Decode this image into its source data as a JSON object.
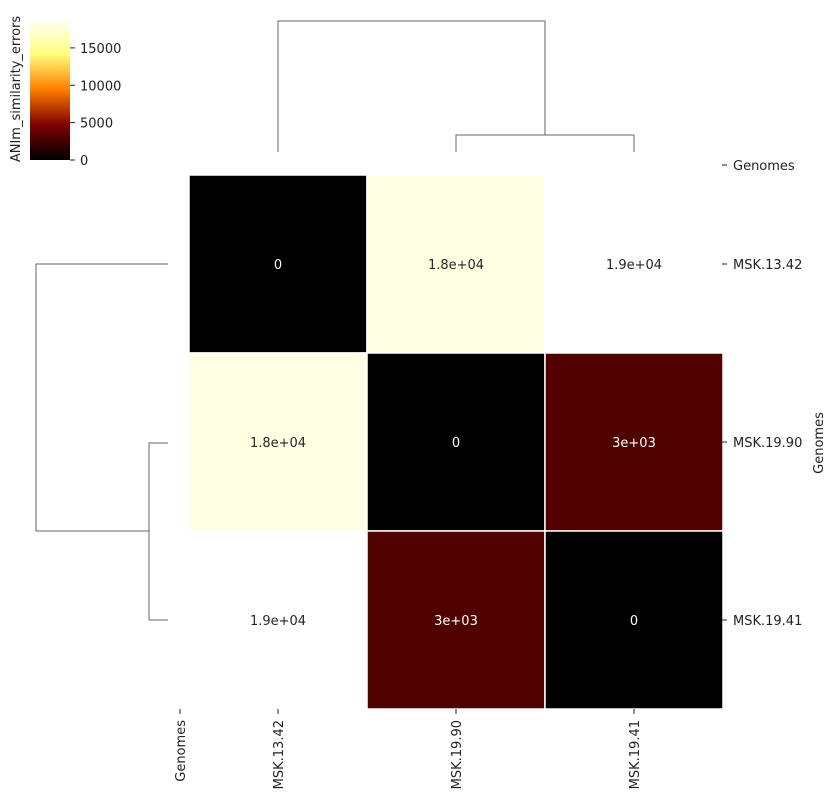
{
  "chart_data": {
    "type": "heatmap",
    "rows": [
      "MSK.13.42",
      "MSK.19.90",
      "MSK.19.41"
    ],
    "columns": [
      "MSK.13.42",
      "MSK.19.90",
      "MSK.19.41"
    ],
    "values": [
      [
        0,
        18000,
        19000
      ],
      [
        18000,
        0,
        3000
      ],
      [
        19000,
        3000,
        0
      ]
    ],
    "annotations": [
      [
        "0",
        "1.8e+04",
        "1.9e+04"
      ],
      [
        "1.8e+04",
        "0",
        "3e+03"
      ],
      [
        "1.9e+04",
        "3e+03",
        "0"
      ]
    ],
    "xlabel": "Genomes",
    "ylabel": "Genomes",
    "colorbar": {
      "label": "ANIm_similarity_errors",
      "ticks": [
        0,
        5000,
        10000,
        15000
      ],
      "tick_labels": [
        "0",
        "5000",
        "10000",
        "15000"
      ],
      "range": [
        0,
        19000
      ],
      "colormap": "afmhot",
      "colors": [
        "#000000",
        "#800000",
        "#ff8000",
        "#ffff80",
        "#ffffff"
      ]
    },
    "dendrogram": {
      "top": "MSK.13.42 separate; MSK.19.90 and MSK.19.41 joined",
      "left": "MSK.13.42 separate; MSK.19.90 and MSK.19.41 joined"
    },
    "grid": false,
    "legend": "top-left colorbar"
  }
}
